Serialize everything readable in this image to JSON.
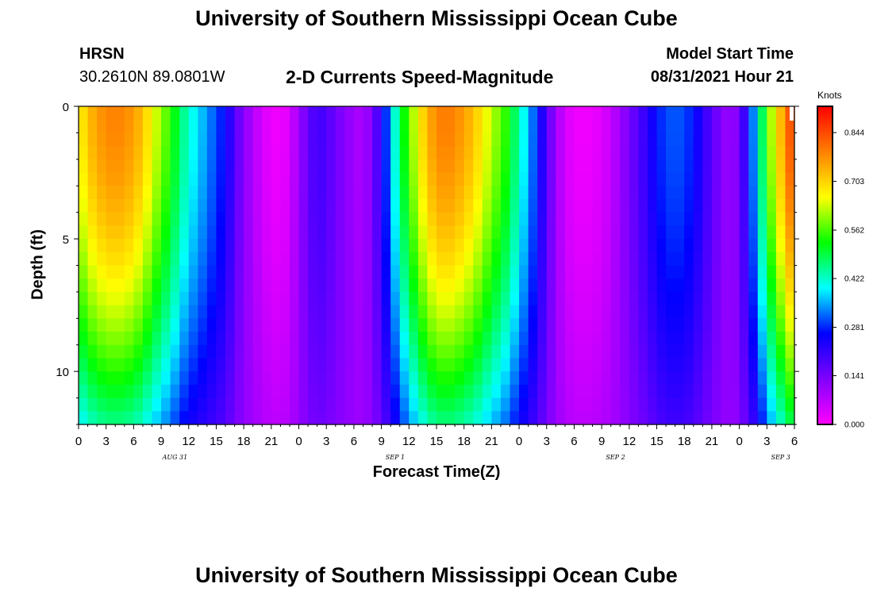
{
  "header": {
    "title_top": "University of Southern Mississippi Ocean Cube",
    "station": "HRSN",
    "coords": "30.2610N  89.0801W",
    "subtitle": "2-D Currents Speed-Magnitude",
    "model_label": "Model Start Time",
    "model_time": "08/31/2021 Hour 21",
    "title_bottom": "University of Southern Mississippi Ocean Cube"
  },
  "colorbar": {
    "unit": "Knots",
    "ticks": [
      "0.000",
      "0.141",
      "0.281",
      "0.422",
      "0.562",
      "0.703",
      "0.844"
    ],
    "colors": [
      "#ff00ff",
      "#8000ff",
      "#0000ff",
      "#00ffff",
      "#00ff00",
      "#ffff00",
      "#ff8000",
      "#ff0000"
    ]
  },
  "chart_data": {
    "type": "heatmap",
    "title": "2-D Currents Speed-Magnitude",
    "xlabel": "Forecast Time(Z)",
    "ylabel": "Depth (ft)",
    "x_tick_labels": [
      "0",
      "3",
      "6",
      "9",
      "12",
      "15",
      "18",
      "21",
      "0",
      "3",
      "6",
      "9",
      "12",
      "15",
      "18",
      "21",
      "0",
      "3",
      "6",
      "9",
      "12",
      "15",
      "18",
      "21",
      "0",
      "3",
      "6"
    ],
    "date_labels": [
      "AUG 31",
      "SEP 1",
      "SEP 2",
      "SEP 3"
    ],
    "date_label_hours": [
      10.5,
      34.5,
      58.5,
      76.5
    ],
    "y_ticks": [
      0,
      5,
      10
    ],
    "ylim": [
      0,
      12
    ],
    "xlim_hours": [
      0,
      78
    ],
    "value_range_knots": [
      0.0,
      0.92
    ],
    "speed_profile_hours": [
      0,
      1,
      2,
      3,
      4,
      5,
      6,
      7,
      8,
      9,
      10,
      11,
      12,
      13,
      14,
      15,
      16,
      17,
      18,
      19,
      20,
      21,
      22,
      23,
      24,
      25,
      26,
      27,
      28,
      29,
      30,
      31,
      32,
      33,
      34,
      35,
      36,
      37,
      38,
      39,
      40,
      41,
      42,
      43,
      44,
      45,
      46,
      47,
      48,
      49,
      50,
      51,
      52,
      53,
      54,
      55,
      56,
      57,
      58,
      59,
      60,
      61,
      62,
      63,
      64,
      65,
      66,
      67,
      68,
      69,
      70,
      71,
      72,
      73,
      74,
      75,
      76,
      77,
      78
    ],
    "speed_profile_surface_knots": [
      0.66,
      0.72,
      0.76,
      0.78,
      0.79,
      0.78,
      0.76,
      0.72,
      0.66,
      0.6,
      0.55,
      0.48,
      0.42,
      0.38,
      0.34,
      0.3,
      0.26,
      0.18,
      0.12,
      0.08,
      0.04,
      0.02,
      0.01,
      0.04,
      0.1,
      0.16,
      0.2,
      0.18,
      0.15,
      0.12,
      0.1,
      0.08,
      0.14,
      0.22,
      0.36,
      0.48,
      0.58,
      0.66,
      0.74,
      0.78,
      0.8,
      0.78,
      0.76,
      0.72,
      0.68,
      0.62,
      0.58,
      0.52,
      0.44,
      0.36,
      0.28,
      0.18,
      0.1,
      0.04,
      0.02,
      0.01,
      0.02,
      0.03,
      0.06,
      0.1,
      0.14,
      0.18,
      0.22,
      0.27,
      0.3,
      0.31,
      0.3,
      0.27,
      0.22,
      0.17,
      0.13,
      0.1,
      0.14,
      0.26,
      0.4,
      0.56,
      0.68,
      0.78,
      0.88
    ],
    "depth_structure": "speeds decay and shrink in time with depth; max near surface"
  }
}
